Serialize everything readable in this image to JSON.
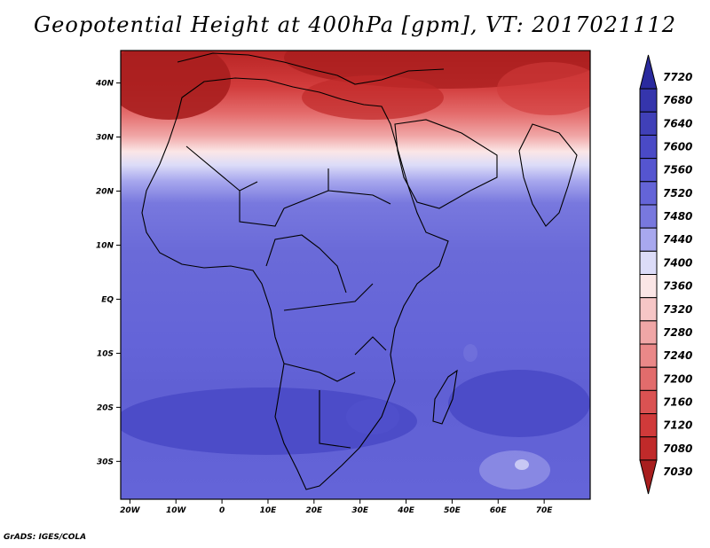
{
  "title": "Geopotential Height at 400hPa [gpm], VT: 2017021112",
  "credit": "GrADS: IGES/COLA",
  "map": {
    "lat_ticks": [
      {
        "value": 40,
        "label": "40N"
      },
      {
        "value": 30,
        "label": "30N"
      },
      {
        "value": 20,
        "label": "20N"
      },
      {
        "value": 10,
        "label": "10N"
      },
      {
        "value": 0,
        "label": "EQ"
      },
      {
        "value": -10,
        "label": "10S"
      },
      {
        "value": -20,
        "label": "20S"
      },
      {
        "value": -30,
        "label": "30S"
      }
    ],
    "lon_ticks": [
      {
        "value": -20,
        "label": "20W"
      },
      {
        "value": -10,
        "label": "10W"
      },
      {
        "value": 0,
        "label": "0"
      },
      {
        "value": 10,
        "label": "10E"
      },
      {
        "value": 20,
        "label": "20E"
      },
      {
        "value": 30,
        "label": "30E"
      },
      {
        "value": 40,
        "label": "40E"
      },
      {
        "value": 50,
        "label": "50E"
      },
      {
        "value": 60,
        "label": "60E"
      },
      {
        "value": 70,
        "label": "70E"
      }
    ],
    "lon_range": [
      -22,
      80
    ],
    "lat_range": [
      -37,
      46
    ]
  },
  "colorbar": {
    "levels": [
      {
        "label": "7720",
        "color": "#2a2a9e"
      },
      {
        "label": "7680",
        "color": "#3535ac"
      },
      {
        "label": "7640",
        "color": "#4040b8"
      },
      {
        "label": "7600",
        "color": "#4a4ac6"
      },
      {
        "label": "7560",
        "color": "#5555d0"
      },
      {
        "label": "7520",
        "color": "#6464d8"
      },
      {
        "label": "7480",
        "color": "#7878de"
      },
      {
        "label": "7440",
        "color": "#a8a8ee"
      },
      {
        "label": "7400",
        "color": "#dcdcf8"
      },
      {
        "label": "7360",
        "color": "#fbe6e6"
      },
      {
        "label": "7320",
        "color": "#f6c6c6"
      },
      {
        "label": "7280",
        "color": "#f0a6a6"
      },
      {
        "label": "7240",
        "color": "#ea8888"
      },
      {
        "label": "7200",
        "color": "#e26c6c"
      },
      {
        "label": "7160",
        "color": "#da5252"
      },
      {
        "label": "7120",
        "color": "#d03a3a"
      },
      {
        "label": "7080",
        "color": "#c02a2a"
      },
      {
        "label": "7030",
        "color": "#a81e1e"
      }
    ]
  }
}
